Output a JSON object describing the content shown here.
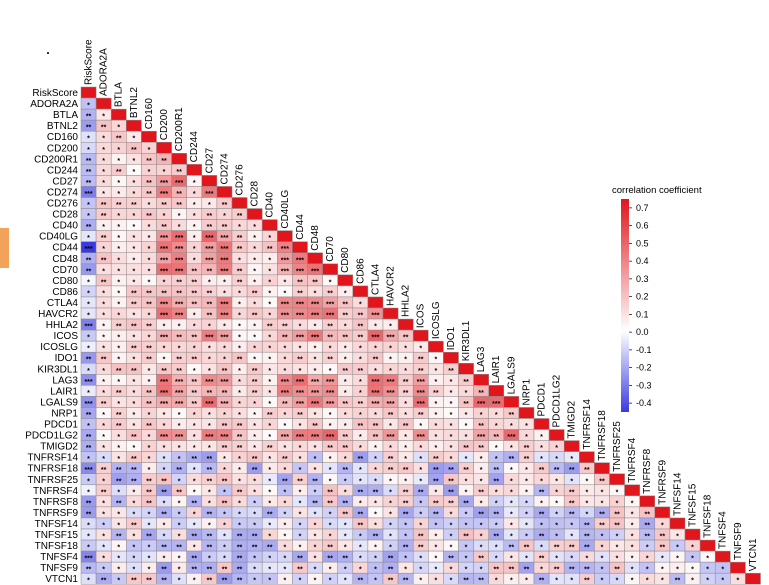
{
  "chart_data": {
    "type": "heatmap",
    "layout": "lower-triangular correlation matrix",
    "variables": [
      "RiskScore",
      "ADORA2A",
      "BTLA",
      "BTNL2",
      "CD160",
      "CD200",
      "CD200R1",
      "CD244",
      "CD27",
      "CD274",
      "CD276",
      "CD28",
      "CD40",
      "CD40LG",
      "CD44",
      "CD48",
      "CD70",
      "CD80",
      "CD86",
      "CTLA4",
      "HAVCR2",
      "HHLA2",
      "ICOS",
      "ICOSLG",
      "IDO1",
      "KIR3DL1",
      "LAG3",
      "LAIR1",
      "LGALS9",
      "NRP1",
      "PDCD1",
      "PDCD1LG2",
      "TMIGD2",
      "TNFRSF14",
      "TNFRSF18",
      "TNFRSF25",
      "TNFRSF4",
      "TNFRSF8",
      "TNFRSF9",
      "TNFSF14",
      "TNFSF15",
      "TNFSF18",
      "TNFSF4",
      "TNFSF9",
      "VTCN1"
    ],
    "diagonal_value": 1,
    "color_scale": {
      "title": "correlation coefficient",
      "min": -0.45,
      "max": 0.75,
      "ticks": [
        "0.7",
        "0.6",
        "0.5",
        "0.4",
        "0.3",
        "0.2",
        "0.1",
        "0.0",
        "-0.1",
        "-0.2",
        "-0.3",
        "-0.4"
      ],
      "low_color": "#3a3ae0",
      "mid_color": "#ffffff",
      "high_color": "#e0161c"
    },
    "legend_position": "right",
    "significance_marks": [
      "*",
      "**",
      "***"
    ]
  }
}
